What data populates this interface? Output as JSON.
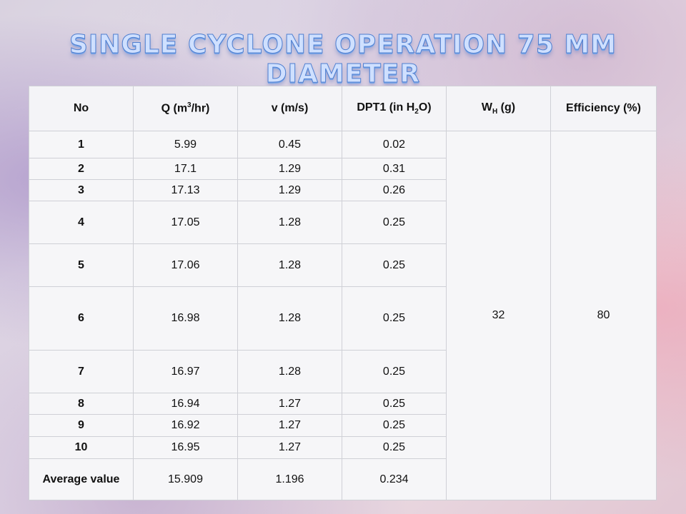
{
  "slide": {
    "title": "SINGLE CYCLONE OPERATION 75 MM DIAMETER"
  },
  "table": {
    "headers": {
      "no": "No",
      "q_pre": "Q (m",
      "q_sup": "3",
      "q_post": "/hr)",
      "v": "v (m/s)",
      "dpt_pre": "DPT1 (in H",
      "dpt_sub": "2",
      "dpt_post": "O)",
      "wh_pre": "W",
      "wh_sub": "H",
      "wh_post": " (g)",
      "efficiency": "Efficiency (%)"
    },
    "rows": [
      {
        "no": "1",
        "q": "5.99",
        "v": "0.45",
        "dpt": "0.02"
      },
      {
        "no": "2",
        "q": "17.1",
        "v": "1.29",
        "dpt": "0.31"
      },
      {
        "no": "3",
        "q": "17.13",
        "v": "1.29",
        "dpt": "0.26"
      },
      {
        "no": "4",
        "q": "17.05",
        "v": "1.28",
        "dpt": "0.25"
      },
      {
        "no": "5",
        "q": "17.06",
        "v": "1.28",
        "dpt": "0.25"
      },
      {
        "no": "6",
        "q": "16.98",
        "v": "1.28",
        "dpt": "0.25"
      },
      {
        "no": "7",
        "q": "16.97",
        "v": "1.28",
        "dpt": "0.25"
      },
      {
        "no": "8",
        "q": "16.94",
        "v": "1.27",
        "dpt": "0.25"
      },
      {
        "no": "9",
        "q": "16.92",
        "v": "1.27",
        "dpt": "0.25"
      },
      {
        "no": "10",
        "q": "16.95",
        "v": "1.27",
        "dpt": "0.25"
      }
    ],
    "average": {
      "label": "Average value",
      "q": "15.909",
      "v": "1.196",
      "dpt": "0.234"
    },
    "wh_value": "32",
    "efficiency_value": "80"
  }
}
